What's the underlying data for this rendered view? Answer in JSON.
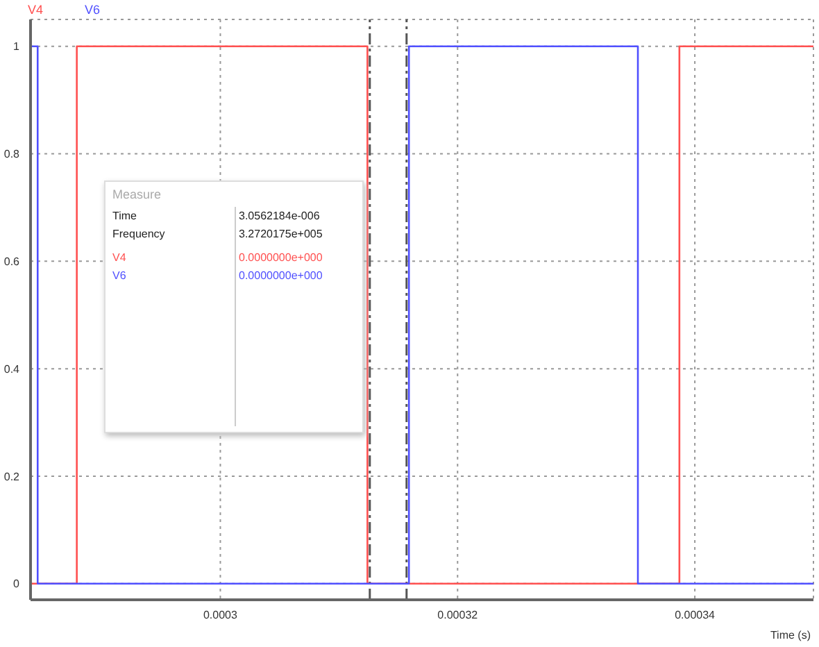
{
  "chart_data": {
    "type": "step",
    "xlabel": "Time (s)",
    "series": [
      {
        "name": "V4",
        "color": "#ff5050",
        "x": [
          0.000284,
          0.0002879,
          0.0003124,
          0.0003124,
          0.0003387,
          0.00035
        ],
        "values": [
          0,
          1,
          0.5,
          0,
          1,
          1
        ]
      },
      {
        "name": "V6",
        "color": "#5050ff",
        "x": [
          0.000284,
          0.0002846,
          0.0003159,
          0.0003352,
          0.00035
        ],
        "values": [
          1,
          0,
          1,
          0,
          0
        ]
      }
    ],
    "xlim": [
      0.000284,
      0.00035
    ],
    "xticks": [
      0.0003,
      0.00032,
      0.00034
    ],
    "ylim": [
      -0.03,
      1.05
    ],
    "yticks": [
      0,
      0.2,
      0.4,
      0.6,
      0.8,
      1
    ],
    "ref_lines": [
      {
        "axis": "x",
        "value": 0.0003126,
        "color": "#555555",
        "line_style": "dashed"
      },
      {
        "axis": "x",
        "value": 0.0003157,
        "color": "#555555",
        "line_style": "dashed"
      }
    ],
    "annotations": [
      "Measure",
      "Time",
      "3.0562184e-006",
      "Frequency",
      "3.2720175e+005",
      "V4",
      "0.0000000e+000",
      "V6",
      "0.0000000e+000"
    ],
    "grid": true,
    "legend": "top left",
    "line_style": "solid",
    "marker": "none"
  }
}
